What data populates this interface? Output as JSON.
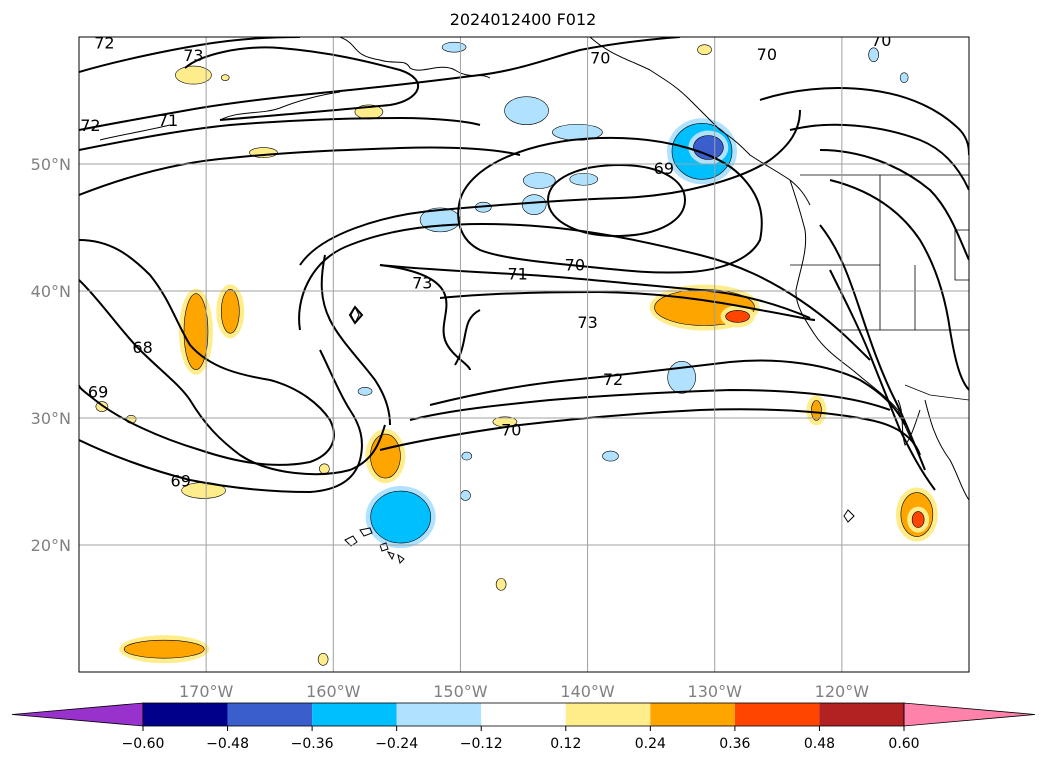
{
  "title": "2024012400 F012",
  "map": {
    "lat_labels": [
      "50°N",
      "40°N",
      "30°N",
      "20°N"
    ],
    "lon_labels": [
      "170°W",
      "160°W",
      "150°W",
      "140°W",
      "130°W",
      "120°W"
    ],
    "lat_ticks": [
      50,
      40,
      30,
      20
    ],
    "lon_ticks": [
      -170,
      -160,
      -150,
      -140,
      -130,
      -120
    ],
    "extent": {
      "lon_min": -180,
      "lon_max": -110,
      "lat_min": 10,
      "lat_max": 60
    },
    "gridlines": true
  },
  "contours": {
    "levels_labeled": [
      "68",
      "69",
      "70",
      "71",
      "72",
      "73"
    ],
    "labels": [
      {
        "text": "72",
        "lon": -178,
        "lat": 59.5
      },
      {
        "text": "73",
        "lon": -171,
        "lat": 58.5
      },
      {
        "text": "72",
        "lon": -179.1,
        "lat": 53.0
      },
      {
        "text": "71",
        "lon": -173,
        "lat": 53.4
      },
      {
        "text": "70",
        "lon": -139,
        "lat": 58.3
      },
      {
        "text": "70",
        "lon": -125.9,
        "lat": 58.6
      },
      {
        "text": "70",
        "lon": -116.9,
        "lat": 59.7
      },
      {
        "text": "69",
        "lon": -134,
        "lat": 49.6
      },
      {
        "text": "70",
        "lon": -141,
        "lat": 42.0
      },
      {
        "text": "71",
        "lon": -145.5,
        "lat": 41.3
      },
      {
        "text": "73",
        "lon": -153,
        "lat": 40.6
      },
      {
        "text": "73",
        "lon": -140,
        "lat": 37.5
      },
      {
        "text": "68",
        "lon": -175,
        "lat": 35.5
      },
      {
        "text": "69",
        "lon": -178.5,
        "lat": 32.0
      },
      {
        "text": "72",
        "lon": -138,
        "lat": 33.0
      },
      {
        "text": "70",
        "lon": -146,
        "lat": 29.0
      },
      {
        "text": "69",
        "lon": -172,
        "lat": 25.0
      }
    ]
  },
  "colorbar": {
    "tick_labels": [
      "−0.60",
      "−0.48",
      "−0.36",
      "−0.24",
      "−0.12",
      "0.12",
      "0.24",
      "0.36",
      "0.48",
      "0.60"
    ],
    "bounds": [
      -0.6,
      -0.48,
      -0.36,
      -0.24,
      -0.12,
      0.12,
      0.24,
      0.36,
      0.48,
      0.6
    ],
    "colors": [
      "#9932CC",
      "#00008B",
      "#3A5FCD",
      "#00BFFF",
      "#B0E2FF",
      "#FFFFFF",
      "#FFEC8B",
      "#FFA500",
      "#FF4500",
      "#B22222",
      "#FF82AB"
    ],
    "extend": "both"
  },
  "shading": [
    {
      "lon": -171,
      "lat": 57.0,
      "rx": 18,
      "ry": 9,
      "level": 1
    },
    {
      "lon": -150.5,
      "lat": 59.2,
      "rx": 12,
      "ry": 5,
      "level": -1
    },
    {
      "lon": -130.8,
      "lat": 59.0,
      "rx": 7,
      "ry": 5,
      "level": 1
    },
    {
      "lon": -117.5,
      "lat": 58.6,
      "rx": 5,
      "ry": 7,
      "level": -1
    },
    {
      "lon": -157.2,
      "lat": 54.1,
      "rx": 14,
      "ry": 7,
      "level": 1
    },
    {
      "lon": -144.8,
      "lat": 54.2,
      "rx": 22,
      "ry": 14,
      "level": -1
    },
    {
      "lon": -140.8,
      "lat": 52.5,
      "rx": 25,
      "ry": 8,
      "level": -1
    },
    {
      "lon": -165.5,
      "lat": 50.9,
      "rx": 14,
      "ry": 5,
      "level": 1
    },
    {
      "lon": -131.0,
      "lat": 51.0,
      "rx": 30,
      "ry": 28,
      "level": -2
    },
    {
      "lon": -130.5,
      "lat": 51.3,
      "rx": 15,
      "ry": 12,
      "level": -3
    },
    {
      "lon": -140.3,
      "lat": 48.8,
      "rx": 14,
      "ry": 6,
      "level": -1
    },
    {
      "lon": -143.8,
      "lat": 48.7,
      "rx": 16,
      "ry": 8,
      "level": -1
    },
    {
      "lon": -144.2,
      "lat": 46.8,
      "rx": 12,
      "ry": 10,
      "level": -1
    },
    {
      "lon": -151.6,
      "lat": 45.6,
      "rx": 20,
      "ry": 12,
      "level": -1
    },
    {
      "lon": -148.2,
      "lat": 46.6,
      "rx": 8,
      "ry": 5,
      "level": -1
    },
    {
      "lon": -170.8,
      "lat": 36.8,
      "rx": 12,
      "ry": 38,
      "level": 2
    },
    {
      "lon": -168.1,
      "lat": 38.4,
      "rx": 9,
      "ry": 22,
      "level": 2
    },
    {
      "lon": -130.8,
      "lat": 38.7,
      "rx": 50,
      "ry": 18,
      "level": 2
    },
    {
      "lon": -128.2,
      "lat": 38.0,
      "rx": 12,
      "ry": 6,
      "level": 3
    },
    {
      "lon": -132.6,
      "lat": 33.2,
      "rx": 14,
      "ry": 16,
      "level": -1
    },
    {
      "lon": -155.9,
      "lat": 27.0,
      "rx": 15,
      "ry": 22,
      "level": 2
    },
    {
      "lon": -146.5,
      "lat": 29.7,
      "rx": 12,
      "ry": 5,
      "level": 1
    },
    {
      "lon": -154.7,
      "lat": 22.2,
      "rx": 30,
      "ry": 26,
      "level": -2
    },
    {
      "lon": -170.2,
      "lat": 24.3,
      "rx": 22,
      "ry": 8,
      "level": 1
    },
    {
      "lon": -114.1,
      "lat": 22.4,
      "rx": 16,
      "ry": 22,
      "level": 2
    },
    {
      "lon": -114.0,
      "lat": 22.0,
      "rx": 6,
      "ry": 8,
      "level": 3
    },
    {
      "lon": -173.3,
      "lat": 11.8,
      "rx": 40,
      "ry": 9,
      "level": 2
    },
    {
      "lon": -122.0,
      "lat": 30.6,
      "rx": 5,
      "ry": 10,
      "level": 2
    },
    {
      "lon": -138.2,
      "lat": 27.0,
      "rx": 8,
      "ry": 5,
      "level": -1
    },
    {
      "lon": -160.7,
      "lat": 26.0,
      "rx": 5,
      "ry": 5,
      "level": 1
    },
    {
      "lon": -146.8,
      "lat": 16.9,
      "rx": 5,
      "ry": 6,
      "level": 1
    },
    {
      "lon": -160.8,
      "lat": 11.0,
      "rx": 5,
      "ry": 6,
      "level": 1
    },
    {
      "lon": -178.2,
      "lat": 30.9,
      "rx": 6,
      "ry": 5,
      "level": 1
    },
    {
      "lon": -175.9,
      "lat": 29.9,
      "rx": 5,
      "ry": 4,
      "level": 1
    },
    {
      "lon": -149.6,
      "lat": 23.9,
      "rx": 5,
      "ry": 5,
      "level": -1
    },
    {
      "lon": -149.5,
      "lat": 27.0,
      "rx": 5,
      "ry": 4,
      "level": -1
    },
    {
      "lon": -157.5,
      "lat": 32.1,
      "rx": 7,
      "ry": 4,
      "level": -1
    },
    {
      "lon": -168.5,
      "lat": 56.8,
      "rx": 4,
      "ry": 3,
      "level": 1
    },
    {
      "lon": -115.1,
      "lat": 56.8,
      "rx": 4,
      "ry": 5,
      "level": -1
    }
  ]
}
